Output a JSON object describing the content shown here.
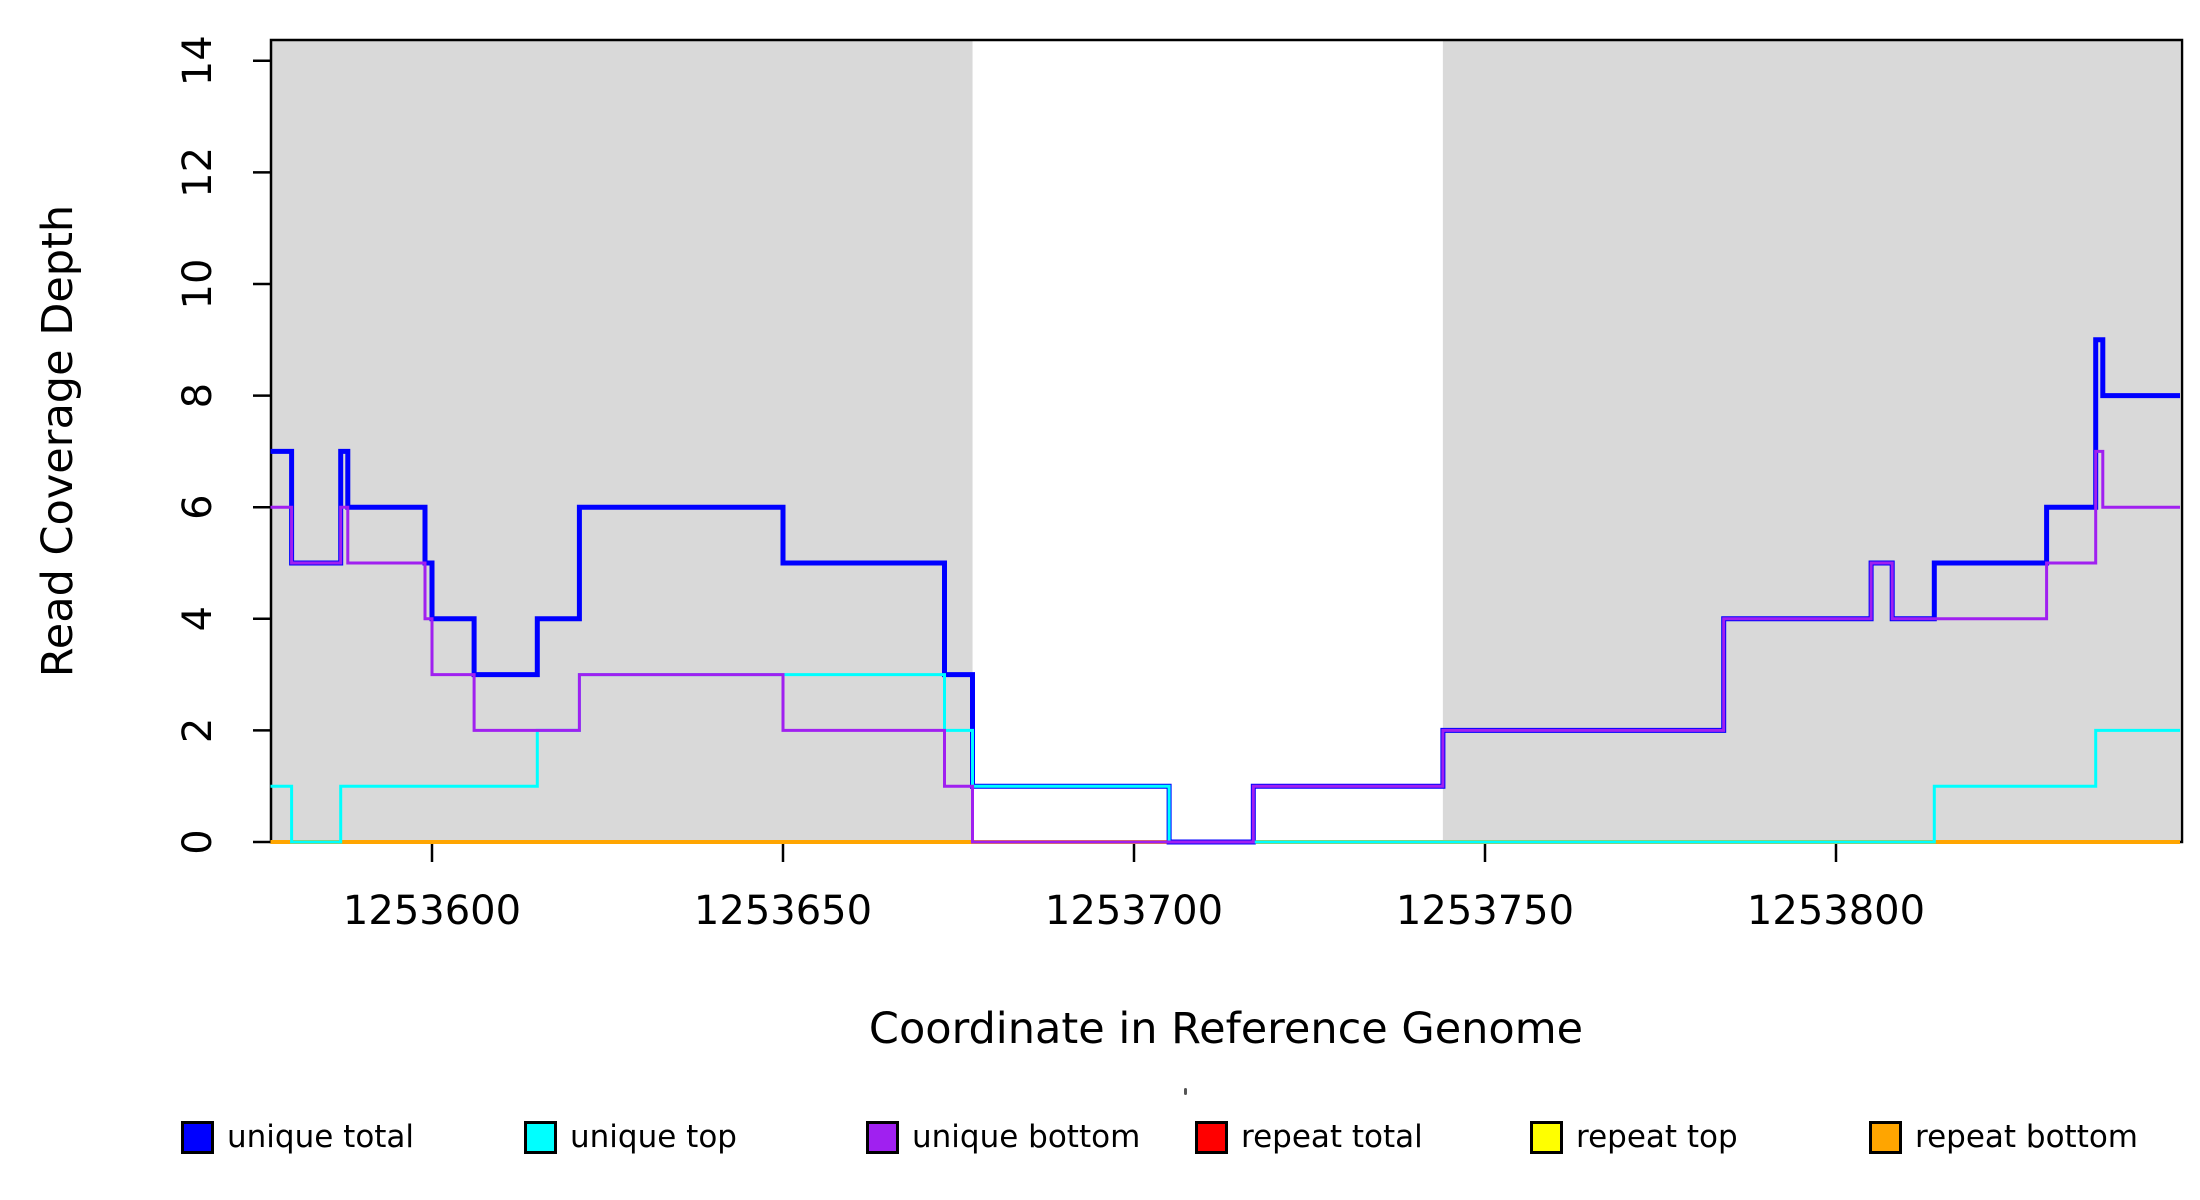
{
  "chart_data": {
    "type": "line",
    "subtype": "step-post",
    "title": "",
    "xlabel": "Coordinate in Reference Genome",
    "ylabel": "Read Coverage Depth",
    "xlim": [
      1253577,
      1253849
    ],
    "ylim": [
      0,
      14.4
    ],
    "grid": false,
    "background_color": "#ffffff",
    "shade_color": "#d9d9d9",
    "axis_color": "#000000",
    "x_ticks": [
      {
        "value": 1253600,
        "label": "1253600"
      },
      {
        "value": 1253650,
        "label": "1253650"
      },
      {
        "value": 1253700,
        "label": "1253700"
      },
      {
        "value": 1253750,
        "label": "1253750"
      },
      {
        "value": 1253800,
        "label": "1253800"
      }
    ],
    "y_ticks": [
      {
        "value": 0,
        "label": "0"
      },
      {
        "value": 2,
        "label": "2"
      },
      {
        "value": 4,
        "label": "4"
      },
      {
        "value": 6,
        "label": "6"
      },
      {
        "value": 8,
        "label": "8"
      },
      {
        "value": 10,
        "label": "10"
      },
      {
        "value": 12,
        "label": "12"
      },
      {
        "value": 14,
        "label": "14"
      }
    ],
    "shaded_regions": [
      {
        "from": 1253577,
        "to": 1253677
      },
      {
        "from": 1253744,
        "to": 1253849
      }
    ],
    "series": [
      {
        "name": "repeat total",
        "color": "#ff0000",
        "line_width": 2.5,
        "points": [
          [
            1253577,
            0
          ],
          [
            1253849,
            0
          ]
        ]
      },
      {
        "name": "repeat top",
        "color": "#ffff00",
        "line_width": 2.5,
        "points": [
          [
            1253577,
            0
          ],
          [
            1253849,
            0
          ]
        ]
      },
      {
        "name": "repeat bottom",
        "color": "#ffa500",
        "line_width": 4,
        "points": [
          [
            1253577,
            0
          ],
          [
            1253849,
            0
          ]
        ]
      },
      {
        "name": "unique total",
        "color": "#0000ff",
        "line_width": 5,
        "points": [
          [
            1253577,
            7
          ],
          [
            1253580,
            5
          ],
          [
            1253587,
            7
          ],
          [
            1253588,
            6
          ],
          [
            1253599,
            5
          ],
          [
            1253600,
            4
          ],
          [
            1253606,
            3
          ],
          [
            1253615,
            4
          ],
          [
            1253621,
            6
          ],
          [
            1253650,
            5
          ],
          [
            1253673,
            3
          ],
          [
            1253677,
            1
          ],
          [
            1253705,
            0
          ],
          [
            1253717,
            1
          ],
          [
            1253744,
            2
          ],
          [
            1253784,
            4
          ],
          [
            1253805,
            5
          ],
          [
            1253808,
            4
          ],
          [
            1253814,
            5
          ],
          [
            1253830,
            6
          ],
          [
            1253837,
            9
          ],
          [
            1253838,
            8
          ],
          [
            1253849,
            8
          ]
        ]
      },
      {
        "name": "unique top",
        "color": "#00ffff",
        "line_width": 3,
        "points": [
          [
            1253577,
            1
          ],
          [
            1253580,
            0
          ],
          [
            1253587,
            1
          ],
          [
            1253615,
            2
          ],
          [
            1253621,
            3
          ],
          [
            1253673,
            2
          ],
          [
            1253677,
            1
          ],
          [
            1253705,
            0
          ],
          [
            1253814,
            1
          ],
          [
            1253837,
            2
          ],
          [
            1253849,
            2
          ]
        ]
      },
      {
        "name": "unique bottom",
        "color": "#a020f0",
        "line_width": 3,
        "points": [
          [
            1253577,
            6
          ],
          [
            1253580,
            5
          ],
          [
            1253587,
            6
          ],
          [
            1253588,
            5
          ],
          [
            1253599,
            4
          ],
          [
            1253600,
            3
          ],
          [
            1253606,
            2
          ],
          [
            1253621,
            3
          ],
          [
            1253650,
            2
          ],
          [
            1253673,
            1
          ],
          [
            1253677,
            0
          ],
          [
            1253717,
            1
          ],
          [
            1253744,
            2
          ],
          [
            1253784,
            4
          ],
          [
            1253805,
            5
          ],
          [
            1253808,
            4
          ],
          [
            1253830,
            5
          ],
          [
            1253837,
            7
          ],
          [
            1253838,
            6
          ],
          [
            1253849,
            6
          ]
        ]
      }
    ],
    "legend_position": "bottom"
  },
  "legend": {
    "items": [
      {
        "label": "unique total",
        "color": "#0000ff"
      },
      {
        "label": "unique top",
        "color": "#00ffff"
      },
      {
        "label": "unique bottom",
        "color": "#a020f0"
      },
      {
        "label": "repeat total",
        "color": "#ff0000"
      },
      {
        "label": "repeat top",
        "color": "#ffff00"
      },
      {
        "label": "repeat bottom",
        "color": "#ffa500"
      }
    ]
  }
}
